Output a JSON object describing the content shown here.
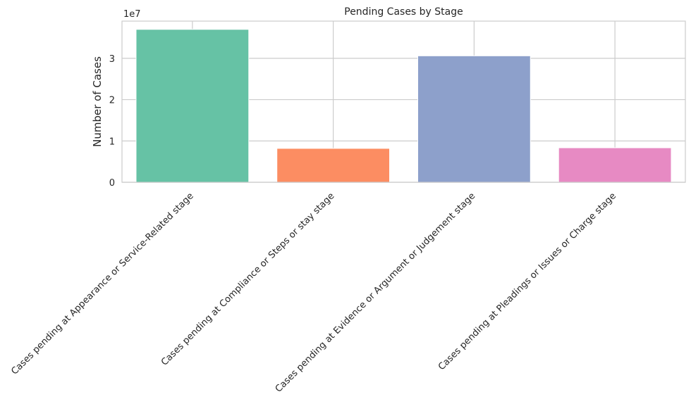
{
  "chart_data": {
    "type": "bar",
    "title": "Pending Cases by Stage",
    "xlabel": "",
    "ylabel": "Number of Cases",
    "y_scale_label": "1e7",
    "ylim": [
      0,
      39000000
    ],
    "y_ticks": [
      0,
      10000000,
      20000000,
      30000000
    ],
    "y_tick_labels": [
      "0",
      "1",
      "2",
      "3"
    ],
    "grid": true,
    "categories": [
      "Cases pending at Appearance or Service-Related stage",
      "Cases pending at Compliance or Steps or stay stage",
      "Cases pending at Evidence or Argument or Judgement stage",
      "Cases pending at Pleadings or Issues or Charge stage"
    ],
    "values": [
      37000000,
      8200000,
      30600000,
      8350000
    ],
    "colors": [
      "#66c2a5",
      "#fc8d62",
      "#8da0cb",
      "#e78ac3"
    ]
  }
}
